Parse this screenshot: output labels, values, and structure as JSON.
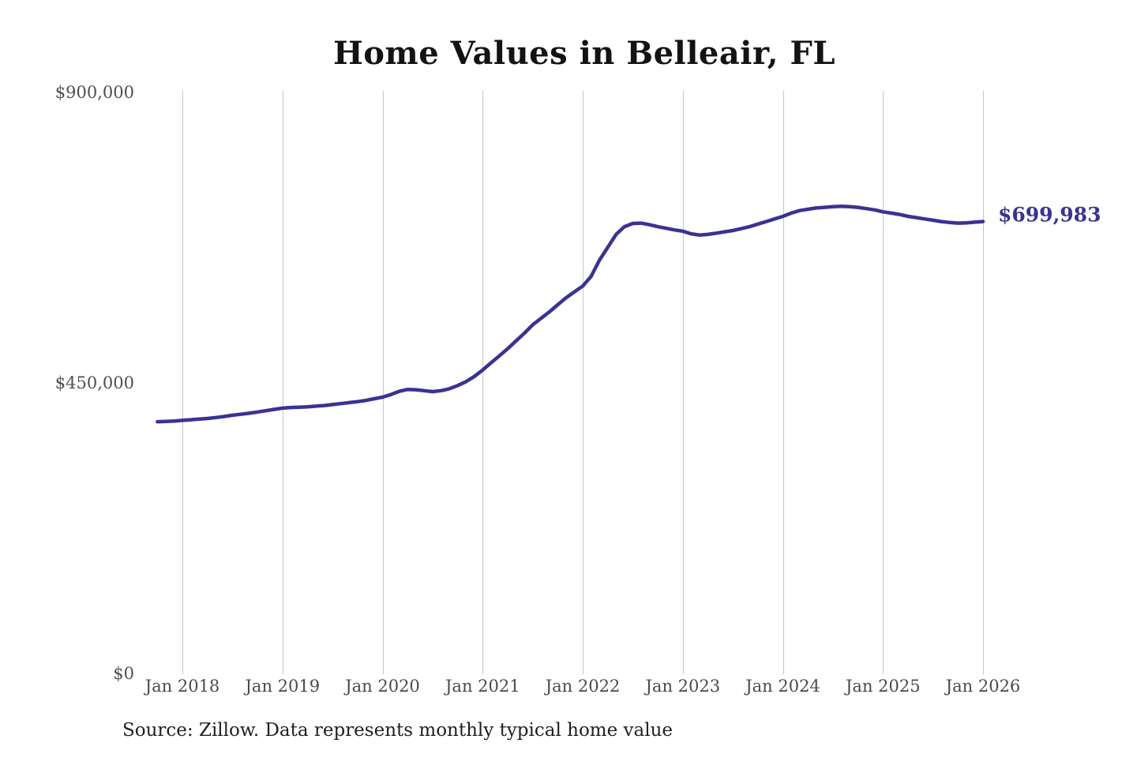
{
  "chart": {
    "title": "Home Values in Belleair, FL",
    "latest_value_label": "$699,983",
    "source_note": "Source: Zillow. Data represents monthly typical home value"
  },
  "colors": {
    "line": "#3a3293",
    "annotation": "#3a3293",
    "gridline": "#c6c6c6",
    "axis_text": "#4f4f4f",
    "title_text": "#131313"
  },
  "chart_data": {
    "type": "line",
    "title": "Home Values in Belleair, FL",
    "series_name": "Monthly typical home value",
    "frequency": "monthly",
    "ylim": [
      0,
      900000
    ],
    "grid": "vertical-only",
    "legend": "none",
    "line_color": "#3a3293",
    "annotation": {
      "text": "$699,983",
      "value": 699983,
      "month": "2026-01",
      "position": "end-of-line"
    },
    "source": "Source: Zillow. Data represents monthly typical home value",
    "y_ticks": [
      {
        "value": 0,
        "label": "$0"
      },
      {
        "value": 450000,
        "label": "$450,000"
      },
      {
        "value": 900000,
        "label": "$900,000"
      }
    ],
    "x_ticks": [
      {
        "month": "2018-01",
        "label": "Jan 2018"
      },
      {
        "month": "2019-01",
        "label": "Jan 2019"
      },
      {
        "month": "2020-01",
        "label": "Jan 2020"
      },
      {
        "month": "2021-01",
        "label": "Jan 2021"
      },
      {
        "month": "2022-01",
        "label": "Jan 2022"
      },
      {
        "month": "2023-01",
        "label": "Jan 2023"
      },
      {
        "month": "2024-01",
        "label": "Jan 2024"
      },
      {
        "month": "2025-01",
        "label": "Jan 2025"
      },
      {
        "month": "2026-01",
        "label": "Jan 2026"
      }
    ],
    "x": [
      "2017-10",
      "2017-11",
      "2017-12",
      "2018-01",
      "2018-02",
      "2018-03",
      "2018-04",
      "2018-05",
      "2018-06",
      "2018-07",
      "2018-08",
      "2018-09",
      "2018-10",
      "2018-11",
      "2018-12",
      "2019-01",
      "2019-02",
      "2019-03",
      "2019-04",
      "2019-05",
      "2019-06",
      "2019-07",
      "2019-08",
      "2019-09",
      "2019-10",
      "2019-11",
      "2019-12",
      "2020-01",
      "2020-02",
      "2020-03",
      "2020-04",
      "2020-05",
      "2020-06",
      "2020-07",
      "2020-08",
      "2020-09",
      "2020-10",
      "2020-11",
      "2020-12",
      "2021-01",
      "2021-02",
      "2021-03",
      "2021-04",
      "2021-05",
      "2021-06",
      "2021-07",
      "2021-08",
      "2021-09",
      "2021-10",
      "2021-11",
      "2021-12",
      "2022-01",
      "2022-02",
      "2022-03",
      "2022-04",
      "2022-05",
      "2022-06",
      "2022-07",
      "2022-08",
      "2022-09",
      "2022-10",
      "2022-11",
      "2022-12",
      "2023-01",
      "2023-02",
      "2023-03",
      "2023-04",
      "2023-05",
      "2023-06",
      "2023-07",
      "2023-08",
      "2023-09",
      "2023-10",
      "2023-11",
      "2023-12",
      "2024-01",
      "2024-02",
      "2024-03",
      "2024-04",
      "2024-05",
      "2024-06",
      "2024-07",
      "2024-08",
      "2024-09",
      "2024-10",
      "2024-11",
      "2024-12",
      "2025-01",
      "2025-02",
      "2025-03",
      "2025-04",
      "2025-05",
      "2025-06",
      "2025-07",
      "2025-08",
      "2025-09",
      "2025-10",
      "2025-11",
      "2025-12",
      "2026-01"
    ],
    "values": [
      390000,
      390500,
      391000,
      392000,
      393000,
      394000,
      395000,
      396500,
      398000,
      400000,
      401500,
      403000,
      405000,
      407000,
      409000,
      411000,
      412000,
      412500,
      413000,
      414000,
      415000,
      416500,
      418000,
      419500,
      421000,
      423000,
      425500,
      428000,
      432000,
      437000,
      440000,
      439500,
      438000,
      436500,
      438000,
      441000,
      446000,
      452000,
      460000,
      470000,
      481000,
      492000,
      503000,
      515000,
      527000,
      540000,
      550000,
      560000,
      571000,
      582000,
      591000,
      600000,
      615000,
      640000,
      660000,
      680000,
      692000,
      697000,
      697500,
      695000,
      692000,
      689500,
      687000,
      685000,
      681000,
      679000,
      680000,
      682000,
      684000,
      686000,
      689000,
      692000,
      696000,
      700000,
      704000,
      708000,
      713000,
      717000,
      719000,
      721000,
      722000,
      723000,
      723500,
      723000,
      722000,
      720000,
      718000,
      715000,
      713000,
      711000,
      708000,
      706000,
      704000,
      702000,
      700000,
      698500,
      697500,
      698000,
      699000,
      699983
    ]
  }
}
